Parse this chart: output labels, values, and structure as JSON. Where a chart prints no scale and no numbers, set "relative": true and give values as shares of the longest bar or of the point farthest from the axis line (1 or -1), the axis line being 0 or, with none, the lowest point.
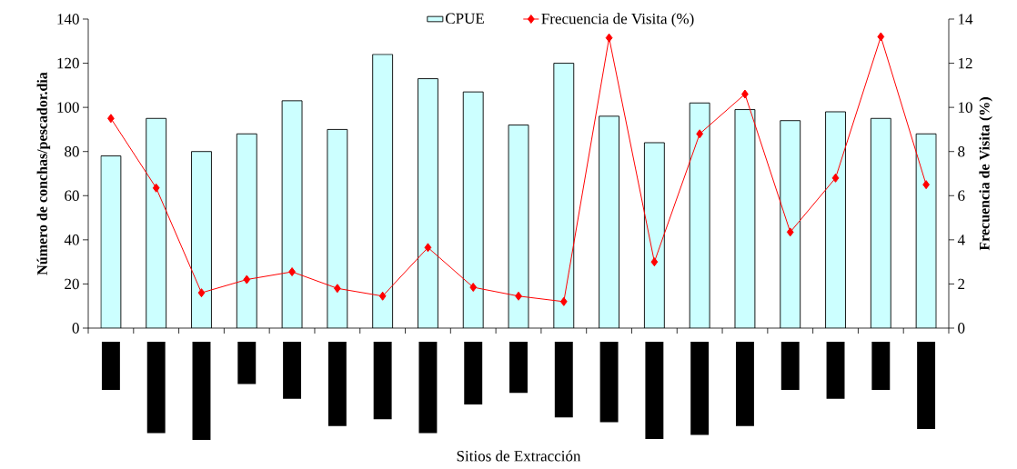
{
  "chart_data": [
    {
      "type": "bar",
      "categories": [
        null,
        null,
        null,
        null,
        null,
        null,
        null,
        null,
        null,
        null,
        null,
        null,
        null,
        null,
        null,
        null,
        null,
        null,
        null
      ],
      "series": [
        {
          "name": "CPUE",
          "type": "bar",
          "color": "#ccffff",
          "values": [
            78,
            95,
            80,
            88,
            103,
            90,
            124,
            113,
            107,
            92,
            120,
            96,
            84,
            102,
            99,
            94,
            98,
            95,
            88
          ]
        },
        {
          "name": "Frecuencia de Visita (%)",
          "type": "line",
          "axis": "y2",
          "color": "#ff0000",
          "marker": "diamond",
          "values": [
            9.5,
            6.35,
            1.6,
            2.2,
            2.55,
            1.8,
            1.45,
            3.65,
            1.85,
            1.45,
            1.2,
            13.15,
            3.0,
            8.8,
            10.6,
            4.35,
            6.8,
            13.2,
            6.5
          ]
        }
      ],
      "ylabel": "Número de conchas/pescador.dia",
      "y2label": "Frecuencia de Visita (%)",
      "ylim": [
        0,
        140
      ],
      "yticks": [
        0,
        20,
        40,
        60,
        80,
        100,
        120,
        140
      ],
      "y2lim": [
        0,
        14
      ],
      "y2ticks": [
        0,
        2,
        4,
        6,
        8,
        10,
        12,
        14
      ],
      "legend": "top"
    },
    {
      "type": "bar",
      "relative": true,
      "categories": [
        null,
        null,
        null,
        null,
        null,
        null,
        null,
        null,
        null,
        null,
        null,
        null,
        null,
        null,
        null,
        null,
        null,
        null,
        null
      ],
      "color": "#000000",
      "values": [
        -0.49,
        -0.93,
        -1.0,
        -0.43,
        -0.58,
        -0.86,
        -0.79,
        -0.93,
        -0.64,
        -0.52,
        -0.77,
        -0.82,
        -0.99,
        -0.95,
        -0.86,
        -0.49,
        -0.58,
        -0.49,
        -0.89
      ],
      "xlabel": "Sitios de Extracción"
    }
  ]
}
